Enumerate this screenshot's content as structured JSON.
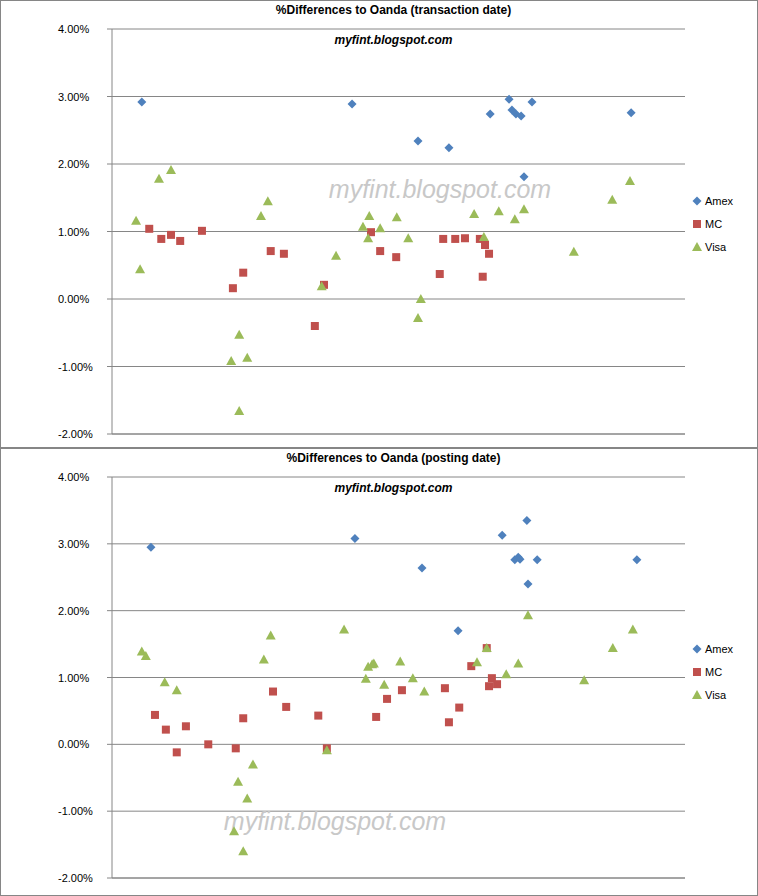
{
  "chart_data": [
    {
      "type": "scatter",
      "title": "%Differences to Oanda (transaction date)",
      "subtitle": "myfint.blogspot.com",
      "annotations": [
        "myfint.blogspot.com"
      ],
      "xlim": [
        0,
        100
      ],
      "ylim": [
        -2,
        4
      ],
      "yticks": [
        {
          "value": -2,
          "label": "-2.00%"
        },
        {
          "value": -1,
          "label": "-1.00%"
        },
        {
          "value": 0,
          "label": "0.00%"
        },
        {
          "value": 1,
          "label": "1.00%"
        },
        {
          "value": 2,
          "label": "2.00%"
        },
        {
          "value": 3,
          "label": "3.00%"
        },
        {
          "value": 4,
          "label": "4.00%"
        }
      ],
      "grid": true,
      "legend": "right",
      "tick_labels": "y",
      "series": [
        {
          "name": "Amex",
          "color": "#4f81bd",
          "marker": "diamond",
          "x": [
            5.2,
            41.9,
            53.4,
            58.8,
            66.0,
            69.3,
            69.8,
            70.5,
            71.4,
            71.9,
            73.3,
            90.6
          ],
          "values": [
            2.92,
            2.89,
            2.34,
            2.24,
            2.74,
            2.96,
            2.8,
            2.74,
            2.71,
            1.81,
            2.92,
            2.76
          ]
        },
        {
          "name": "MC",
          "color": "#c0504d",
          "marker": "square",
          "x": [
            6.5,
            8.6,
            10.3,
            11.9,
            15.7,
            21.1,
            22.9,
            27.7,
            30.0,
            35.4,
            37.0,
            45.2,
            46.8,
            49.6,
            57.2,
            57.8,
            59.9,
            61.6,
            64.2,
            65.1,
            65.8,
            64.7
          ],
          "values": [
            1.04,
            0.89,
            0.95,
            0.86,
            1.01,
            0.16,
            0.39,
            0.71,
            0.67,
            -0.4,
            0.21,
            0.99,
            0.71,
            0.62,
            0.37,
            0.89,
            0.89,
            0.9,
            0.89,
            0.8,
            0.67,
            0.33
          ]
        },
        {
          "name": "Visa",
          "color": "#9bbb59",
          "marker": "triangle",
          "x": [
            4.2,
            4.9,
            8.2,
            10.3,
            20.8,
            22.2,
            22.2,
            23.6,
            26.0,
            27.2,
            36.6,
            39.1,
            43.8,
            44.7,
            44.9,
            46.8,
            49.7,
            51.7,
            53.4,
            53.9,
            63.2,
            64.9,
            67.5,
            70.3,
            71.9,
            80.6,
            87.3,
            90.4
          ],
          "values": [
            1.16,
            0.44,
            1.78,
            1.91,
            -0.92,
            -0.53,
            -1.66,
            -0.87,
            1.23,
            1.45,
            0.19,
            0.64,
            1.07,
            0.9,
            1.23,
            1.05,
            1.21,
            0.9,
            -0.28,
            0.0,
            1.26,
            0.92,
            1.3,
            1.18,
            1.33,
            0.7,
            1.47,
            1.75
          ]
        }
      ]
    },
    {
      "type": "scatter",
      "title": "%Differences to Oanda (posting date)",
      "subtitle": "myfint.blogspot.com",
      "annotations": [
        "myfint.blogspot.com"
      ],
      "xlim": [
        0,
        100
      ],
      "ylim": [
        -2,
        4
      ],
      "yticks": [
        {
          "value": -2,
          "label": "-2.00%"
        },
        {
          "value": -1,
          "label": "-1.00%"
        },
        {
          "value": 0,
          "label": "0.00%"
        },
        {
          "value": 1,
          "label": "1.00%"
        },
        {
          "value": 2,
          "label": "2.00%"
        },
        {
          "value": 3,
          "label": "3.00%"
        },
        {
          "value": 4,
          "label": "4.00%"
        }
      ],
      "grid": true,
      "legend": "right",
      "tick_labels": "y",
      "series": [
        {
          "name": "Amex",
          "color": "#4f81bd",
          "marker": "diamond",
          "x": [
            6.8,
            42.4,
            54.1,
            60.4,
            68.1,
            70.3,
            70.9,
            71.2,
            72.4,
            72.6,
            74.2,
            91.6
          ],
          "values": [
            2.95,
            3.08,
            2.64,
            1.7,
            3.13,
            2.76,
            2.8,
            2.77,
            3.35,
            2.4,
            2.76,
            2.76
          ]
        },
        {
          "name": "MC",
          "color": "#c0504d",
          "marker": "square",
          "x": [
            7.5,
            9.4,
            11.3,
            12.9,
            16.8,
            21.6,
            22.9,
            28.1,
            30.4,
            36.0,
            37.5,
            46.1,
            48.0,
            50.6,
            58.1,
            58.8,
            60.6,
            62.7,
            65.4,
            65.8,
            66.3,
            67.2
          ],
          "values": [
            0.44,
            0.22,
            -0.12,
            0.27,
            0.0,
            -0.06,
            0.39,
            0.79,
            0.56,
            0.43,
            -0.06,
            0.41,
            0.68,
            0.81,
            0.84,
            0.33,
            0.55,
            1.17,
            1.44,
            0.87,
            0.99,
            0.9
          ]
        },
        {
          "name": "Visa",
          "color": "#9bbb59",
          "marker": "triangle",
          "x": [
            5.2,
            5.9,
            9.2,
            11.3,
            21.3,
            22.0,
            22.9,
            23.6,
            24.6,
            26.5,
            27.7,
            37.5,
            40.5,
            44.3,
            44.7,
            45.4,
            45.7,
            47.5,
            50.3,
            52.5,
            54.5,
            63.7,
            65.4,
            68.8,
            70.9,
            72.6,
            82.4,
            87.4,
            90.9
          ],
          "values": [
            1.39,
            1.32,
            0.93,
            0.81,
            -1.3,
            -0.56,
            -1.6,
            -0.81,
            -0.3,
            1.27,
            1.63,
            -0.09,
            1.72,
            0.98,
            1.16,
            1.2,
            1.21,
            0.89,
            1.24,
            0.99,
            0.79,
            1.23,
            1.44,
            1.05,
            1.21,
            1.93,
            0.96,
            1.44,
            1.72
          ]
        }
      ]
    }
  ]
}
